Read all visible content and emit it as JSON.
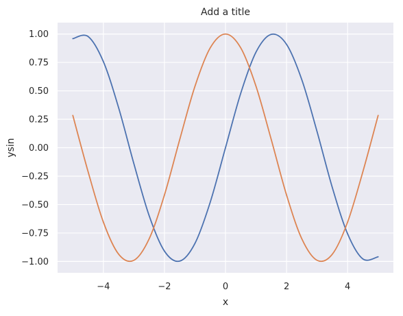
{
  "chart_data": {
    "type": "line",
    "title": "Add a title",
    "xlabel": "x",
    "ylabel": "ysin",
    "xlim": [
      -5.5,
      5.5
    ],
    "ylim": [
      -1.1,
      1.1
    ],
    "xticks": [
      -4,
      -2,
      0,
      2,
      4
    ],
    "xtick_labels": [
      "−4",
      "−2",
      "0",
      "2",
      "4"
    ],
    "yticks": [
      1.0,
      0.75,
      0.5,
      0.25,
      0.0,
      -0.25,
      -0.5,
      -0.75,
      -1.0
    ],
    "ytick_labels": [
      "1.00",
      "0.75",
      "0.50",
      "0.25",
      "0.00",
      "−0.25",
      "−0.50",
      "−0.75",
      "−1.00"
    ],
    "grid": true,
    "legend": "none",
    "background": "#eaeaf2",
    "grid_color": "#ffffff",
    "series": [
      {
        "color": "#4c72b0",
        "x": [
          -5.0,
          -4.5,
          -4.0,
          -3.5,
          -3.0,
          -2.5,
          -2.0,
          -1.5,
          -1.0,
          -0.5,
          0.0,
          0.5,
          1.0,
          1.5,
          2.0,
          2.5,
          3.0,
          3.5,
          4.0,
          4.5,
          5.0
        ],
        "y": [
          0.959,
          0.978,
          0.757,
          0.351,
          -0.141,
          -0.598,
          -0.909,
          -0.997,
          -0.841,
          -0.479,
          0.0,
          0.479,
          0.841,
          0.997,
          0.909,
          0.598,
          0.141,
          -0.351,
          -0.757,
          -0.978,
          -0.959
        ]
      },
      {
        "color": "#dd8452",
        "x": [
          -5.0,
          -4.5,
          -4.0,
          -3.5,
          -3.0,
          -2.5,
          -2.0,
          -1.5,
          -1.0,
          -0.5,
          0.0,
          0.5,
          1.0,
          1.5,
          2.0,
          2.5,
          3.0,
          3.5,
          4.0,
          4.5,
          5.0
        ],
        "y": [
          0.284,
          -0.211,
          -0.654,
          -0.936,
          -0.99,
          -0.801,
          -0.416,
          0.071,
          0.54,
          0.878,
          1.0,
          0.878,
          0.54,
          0.071,
          -0.416,
          -0.801,
          -0.99,
          -0.936,
          -0.654,
          -0.211,
          0.284
        ]
      }
    ]
  }
}
